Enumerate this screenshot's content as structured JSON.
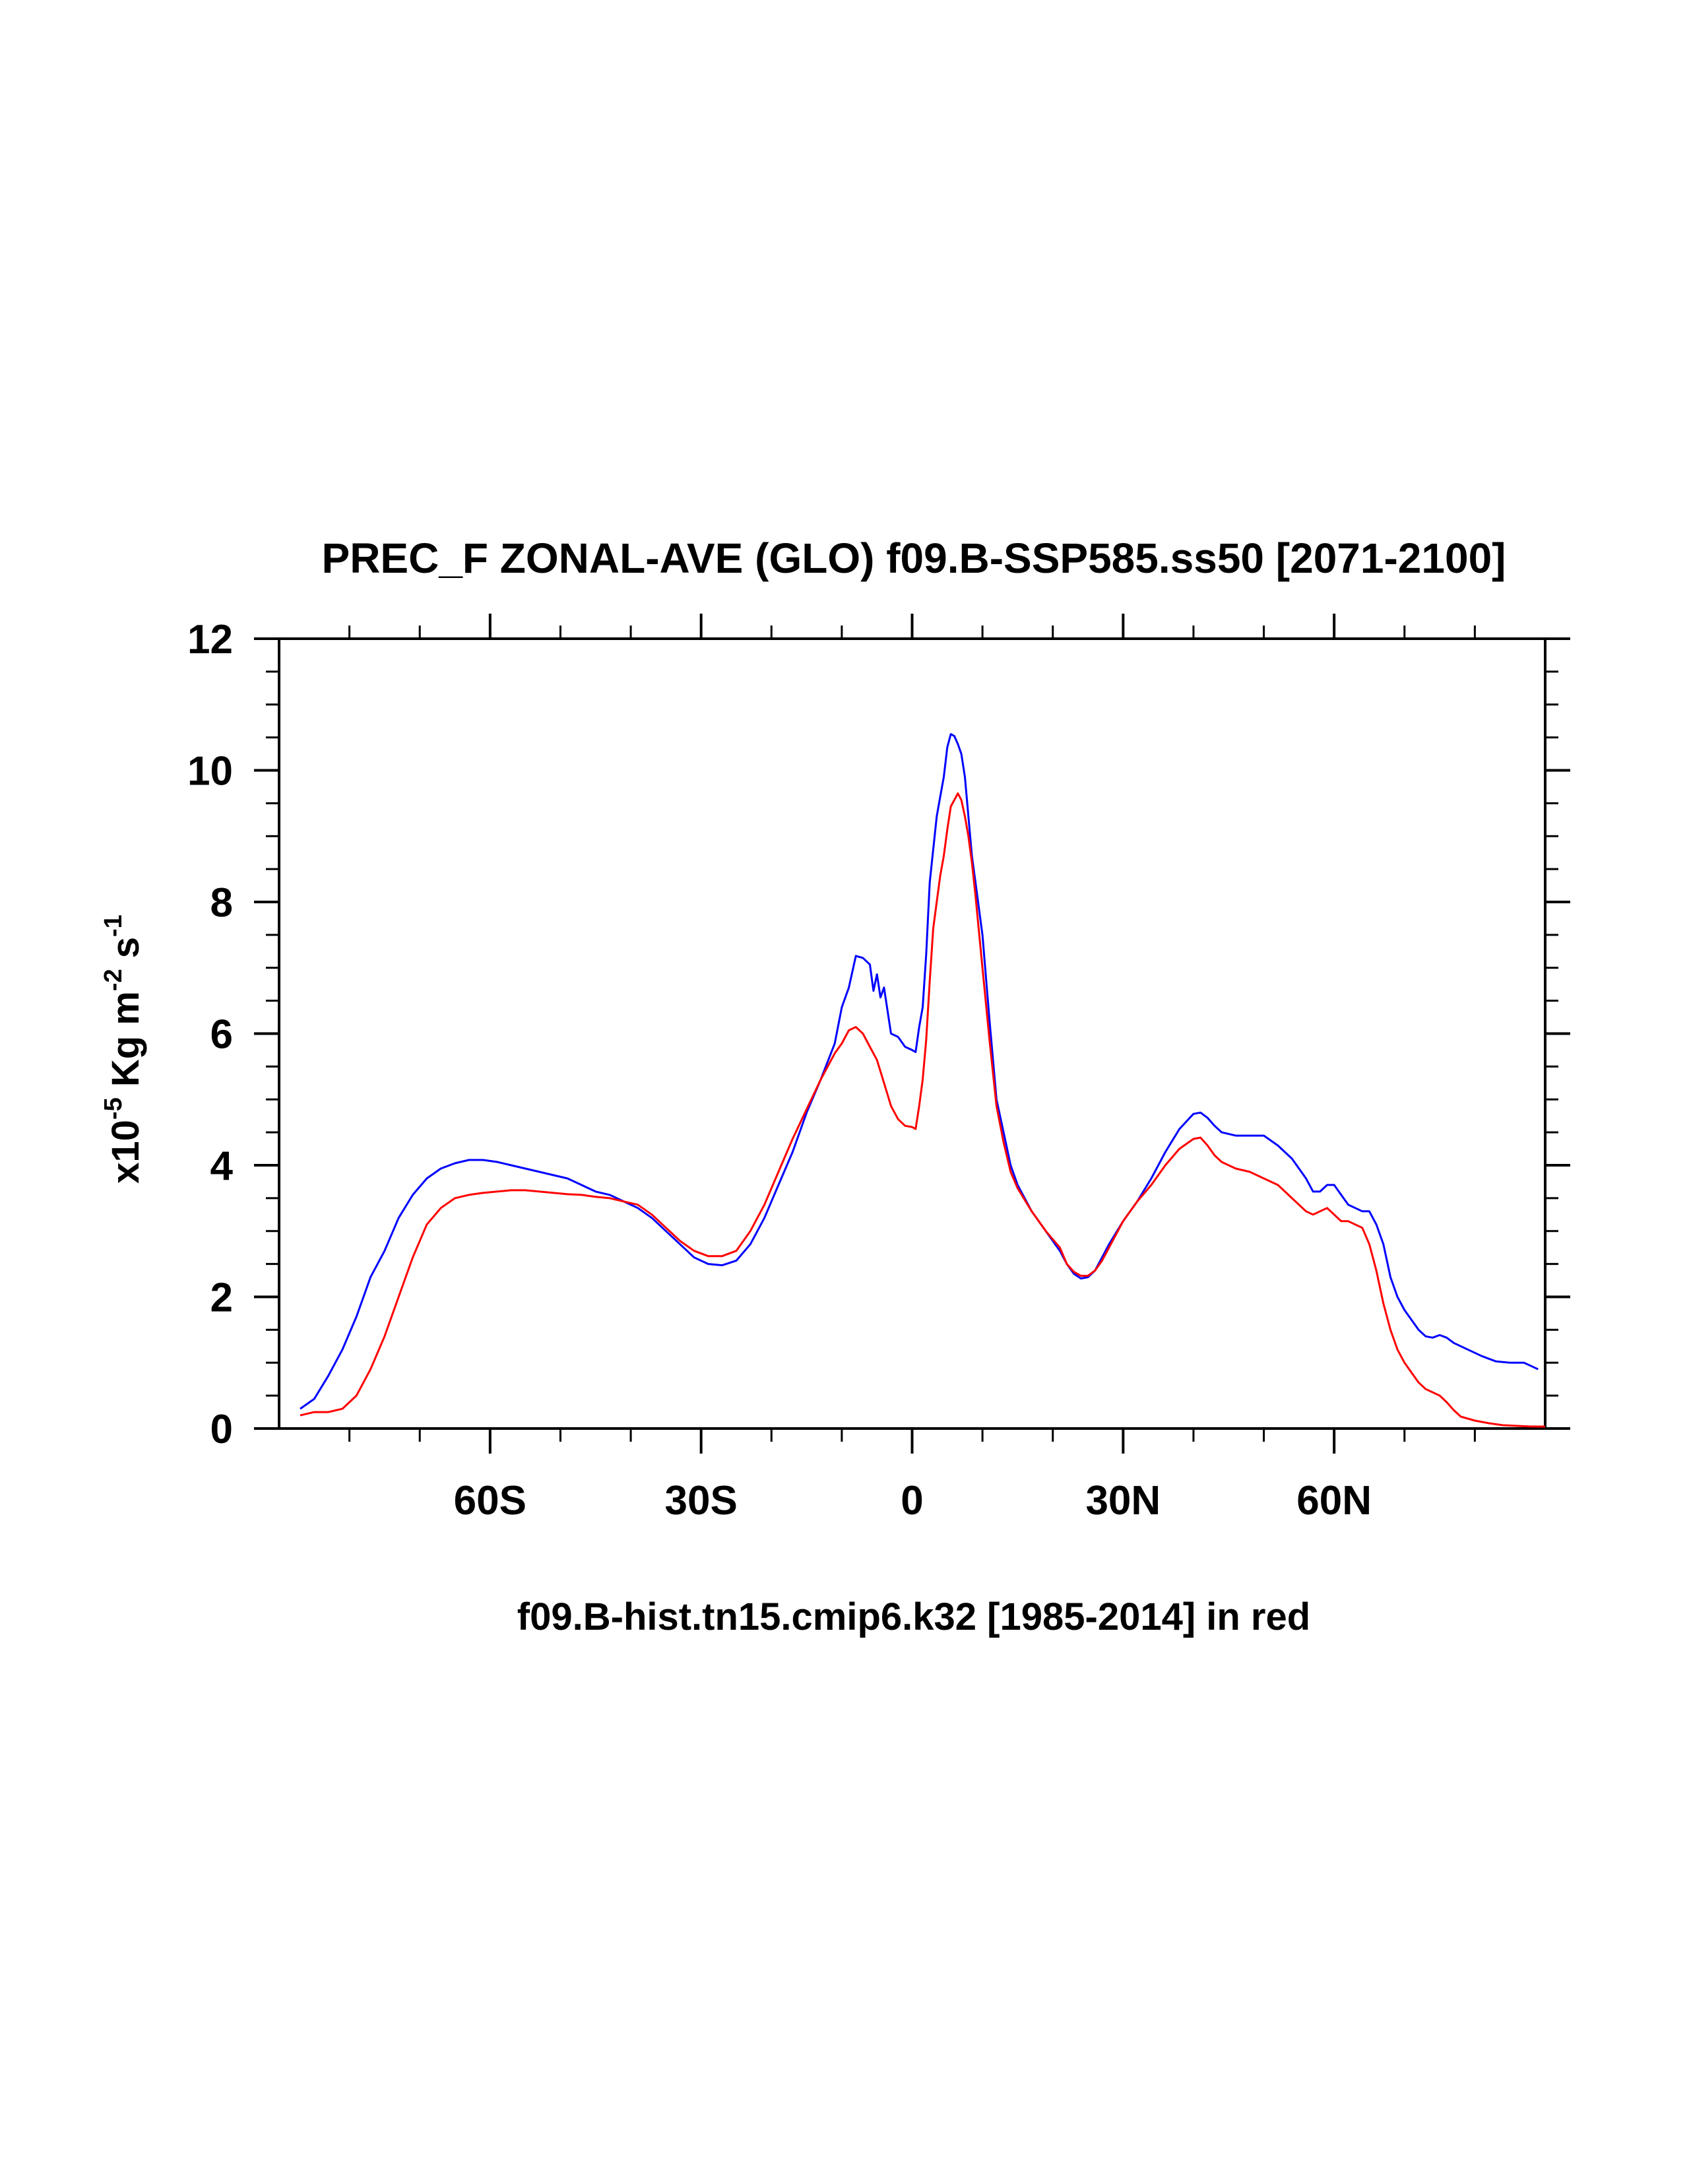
{
  "chart_data": {
    "type": "line",
    "title": "PREC_F ZONAL-AVE (GLO) f09.B-SSP585.ss50 [2071-2100]",
    "xlabel": "f09.B-hist.tn15.cmip6.k32 [1985-2014] in red",
    "ylabel": {
      "prefix": "x10",
      "exp1": "-5",
      "mid": " Kg m",
      "exp2": "-2",
      "mid2": " s",
      "exp3": "-1"
    },
    "xlim": [
      -90,
      90
    ],
    "ylim": [
      0,
      12
    ],
    "xticks": [
      {
        "value": -60,
        "label": "60S"
      },
      {
        "value": -30,
        "label": "30S"
      },
      {
        "value": 0,
        "label": "0"
      },
      {
        "value": 30,
        "label": "30N"
      },
      {
        "value": 60,
        "label": "60N"
      }
    ],
    "yticks": [
      {
        "value": 0,
        "label": "0"
      },
      {
        "value": 2,
        "label": "2"
      },
      {
        "value": 4,
        "label": "4"
      },
      {
        "value": 6,
        "label": "6"
      },
      {
        "value": 8,
        "label": "8"
      },
      {
        "value": 10,
        "label": "10"
      },
      {
        "value": 12,
        "label": "12"
      }
    ],
    "grid": false,
    "series": [
      {
        "color": "#0000ff",
        "points": [
          [
            -87,
            0.3
          ],
          [
            -85,
            0.45
          ],
          [
            -83,
            0.8
          ],
          [
            -81,
            1.2
          ],
          [
            -79,
            1.7
          ],
          [
            -77,
            2.3
          ],
          [
            -75,
            2.7
          ],
          [
            -73,
            3.2
          ],
          [
            -71,
            3.55
          ],
          [
            -69,
            3.8
          ],
          [
            -67,
            3.95
          ],
          [
            -65,
            4.03
          ],
          [
            -63,
            4.08
          ],
          [
            -61,
            4.08
          ],
          [
            -59,
            4.05
          ],
          [
            -57,
            4.0
          ],
          [
            -55,
            3.95
          ],
          [
            -53,
            3.9
          ],
          [
            -51,
            3.85
          ],
          [
            -49,
            3.8
          ],
          [
            -47,
            3.7
          ],
          [
            -45,
            3.6
          ],
          [
            -43,
            3.55
          ],
          [
            -41,
            3.45
          ],
          [
            -39,
            3.35
          ],
          [
            -37,
            3.2
          ],
          [
            -35,
            3.0
          ],
          [
            -33,
            2.8
          ],
          [
            -31,
            2.6
          ],
          [
            -29,
            2.5
          ],
          [
            -27,
            2.48
          ],
          [
            -25,
            2.55
          ],
          [
            -23,
            2.8
          ],
          [
            -21,
            3.2
          ],
          [
            -19,
            3.7
          ],
          [
            -17,
            4.2
          ],
          [
            -15,
            4.8
          ],
          [
            -13,
            5.3
          ],
          [
            -11,
            5.85
          ],
          [
            -10,
            6.4
          ],
          [
            -9,
            6.7
          ],
          [
            -8,
            7.18
          ],
          [
            -7,
            7.15
          ],
          [
            -6,
            7.05
          ],
          [
            -5.5,
            6.65
          ],
          [
            -5,
            6.9
          ],
          [
            -4.5,
            6.55
          ],
          [
            -4,
            6.7
          ],
          [
            -3,
            6.0
          ],
          [
            -2,
            5.95
          ],
          [
            -1,
            5.8
          ],
          [
            0,
            5.75
          ],
          [
            0.5,
            5.72
          ],
          [
            1,
            6.1
          ],
          [
            1.5,
            6.4
          ],
          [
            2,
            7.2
          ],
          [
            2.5,
            8.3
          ],
          [
            3,
            8.8
          ],
          [
            3.5,
            9.3
          ],
          [
            4,
            9.6
          ],
          [
            4.5,
            9.9
          ],
          [
            5,
            10.35
          ],
          [
            5.5,
            10.55
          ],
          [
            6,
            10.52
          ],
          [
            6.5,
            10.4
          ],
          [
            7,
            10.25
          ],
          [
            7.5,
            9.9
          ],
          [
            8,
            9.3
          ],
          [
            8.5,
            8.7
          ],
          [
            9,
            8.3
          ],
          [
            10,
            7.5
          ],
          [
            11,
            6.2
          ],
          [
            12,
            5.0
          ],
          [
            13,
            4.5
          ],
          [
            14,
            4.0
          ],
          [
            15,
            3.7
          ],
          [
            17,
            3.3
          ],
          [
            19,
            3.0
          ],
          [
            21,
            2.7
          ],
          [
            22,
            2.5
          ],
          [
            23,
            2.35
          ],
          [
            24,
            2.28
          ],
          [
            25,
            2.3
          ],
          [
            26,
            2.4
          ],
          [
            27,
            2.6
          ],
          [
            28,
            2.8
          ],
          [
            30,
            3.15
          ],
          [
            32,
            3.45
          ],
          [
            34,
            3.8
          ],
          [
            36,
            4.2
          ],
          [
            38,
            4.55
          ],
          [
            40,
            4.78
          ],
          [
            41,
            4.8
          ],
          [
            42,
            4.72
          ],
          [
            43,
            4.6
          ],
          [
            44,
            4.5
          ],
          [
            46,
            4.45
          ],
          [
            48,
            4.45
          ],
          [
            50,
            4.45
          ],
          [
            52,
            4.3
          ],
          [
            54,
            4.1
          ],
          [
            56,
            3.8
          ],
          [
            57,
            3.6
          ],
          [
            58,
            3.6
          ],
          [
            59,
            3.7
          ],
          [
            60,
            3.7
          ],
          [
            61,
            3.55
          ],
          [
            62,
            3.4
          ],
          [
            63,
            3.35
          ],
          [
            64,
            3.3
          ],
          [
            65,
            3.3
          ],
          [
            66,
            3.1
          ],
          [
            67,
            2.8
          ],
          [
            68,
            2.3
          ],
          [
            69,
            2.0
          ],
          [
            70,
            1.8
          ],
          [
            71,
            1.65
          ],
          [
            72,
            1.5
          ],
          [
            73,
            1.4
          ],
          [
            74,
            1.38
          ],
          [
            75,
            1.42
          ],
          [
            76,
            1.38
          ],
          [
            77,
            1.3
          ],
          [
            79,
            1.2
          ],
          [
            81,
            1.1
          ],
          [
            83,
            1.02
          ],
          [
            85,
            1.0
          ],
          [
            87,
            1.0
          ],
          [
            89,
            0.9
          ]
        ]
      },
      {
        "color": "#ff0000",
        "points": [
          [
            -87,
            0.2
          ],
          [
            -85,
            0.25
          ],
          [
            -83,
            0.25
          ],
          [
            -81,
            0.3
          ],
          [
            -79,
            0.5
          ],
          [
            -77,
            0.9
          ],
          [
            -75,
            1.4
          ],
          [
            -73,
            2.0
          ],
          [
            -71,
            2.6
          ],
          [
            -69,
            3.1
          ],
          [
            -67,
            3.35
          ],
          [
            -65,
            3.5
          ],
          [
            -63,
            3.55
          ],
          [
            -61,
            3.58
          ],
          [
            -59,
            3.6
          ],
          [
            -57,
            3.62
          ],
          [
            -55,
            3.62
          ],
          [
            -53,
            3.6
          ],
          [
            -51,
            3.58
          ],
          [
            -49,
            3.56
          ],
          [
            -47,
            3.55
          ],
          [
            -45,
            3.52
          ],
          [
            -43,
            3.5
          ],
          [
            -41,
            3.45
          ],
          [
            -39,
            3.4
          ],
          [
            -37,
            3.25
          ],
          [
            -35,
            3.05
          ],
          [
            -33,
            2.85
          ],
          [
            -31,
            2.7
          ],
          [
            -29,
            2.62
          ],
          [
            -27,
            2.62
          ],
          [
            -25,
            2.7
          ],
          [
            -23,
            3.0
          ],
          [
            -21,
            3.4
          ],
          [
            -19,
            3.9
          ],
          [
            -17,
            4.4
          ],
          [
            -15,
            4.85
          ],
          [
            -13,
            5.3
          ],
          [
            -11,
            5.7
          ],
          [
            -10,
            5.85
          ],
          [
            -9,
            6.05
          ],
          [
            -8,
            6.1
          ],
          [
            -7,
            6.0
          ],
          [
            -6.5,
            5.9
          ],
          [
            -6,
            5.8
          ],
          [
            -5,
            5.6
          ],
          [
            -4,
            5.25
          ],
          [
            -3,
            4.9
          ],
          [
            -2,
            4.7
          ],
          [
            -1,
            4.6
          ],
          [
            0,
            4.58
          ],
          [
            0.5,
            4.55
          ],
          [
            1,
            4.9
          ],
          [
            1.5,
            5.3
          ],
          [
            2,
            5.9
          ],
          [
            2.5,
            6.8
          ],
          [
            3,
            7.6
          ],
          [
            3.5,
            8.0
          ],
          [
            4,
            8.4
          ],
          [
            4.5,
            8.7
          ],
          [
            5,
            9.1
          ],
          [
            5.5,
            9.45
          ],
          [
            6,
            9.55
          ],
          [
            6.5,
            9.65
          ],
          [
            7,
            9.55
          ],
          [
            7.5,
            9.3
          ],
          [
            8,
            9.0
          ],
          [
            8.5,
            8.6
          ],
          [
            9,
            8.1
          ],
          [
            10,
            7.0
          ],
          [
            11,
            5.9
          ],
          [
            12,
            4.9
          ],
          [
            13,
            4.35
          ],
          [
            14,
            3.9
          ],
          [
            15,
            3.65
          ],
          [
            17,
            3.3
          ],
          [
            19,
            3.0
          ],
          [
            21,
            2.75
          ],
          [
            22,
            2.5
          ],
          [
            23,
            2.38
          ],
          [
            24,
            2.32
          ],
          [
            25,
            2.32
          ],
          [
            26,
            2.4
          ],
          [
            27,
            2.55
          ],
          [
            28,
            2.75
          ],
          [
            30,
            3.15
          ],
          [
            32,
            3.45
          ],
          [
            34,
            3.7
          ],
          [
            36,
            4.0
          ],
          [
            38,
            4.25
          ],
          [
            40,
            4.4
          ],
          [
            41,
            4.42
          ],
          [
            42,
            4.3
          ],
          [
            43,
            4.15
          ],
          [
            44,
            4.05
          ],
          [
            46,
            3.95
          ],
          [
            48,
            3.9
          ],
          [
            50,
            3.8
          ],
          [
            52,
            3.7
          ],
          [
            54,
            3.5
          ],
          [
            56,
            3.3
          ],
          [
            57,
            3.25
          ],
          [
            58,
            3.3
          ],
          [
            59,
            3.35
          ],
          [
            60,
            3.25
          ],
          [
            61,
            3.15
          ],
          [
            62,
            3.15
          ],
          [
            63,
            3.1
          ],
          [
            64,
            3.05
          ],
          [
            65,
            2.8
          ],
          [
            66,
            2.4
          ],
          [
            67,
            1.9
          ],
          [
            68,
            1.5
          ],
          [
            69,
            1.2
          ],
          [
            70,
            1.0
          ],
          [
            71,
            0.85
          ],
          [
            72,
            0.7
          ],
          [
            73,
            0.6
          ],
          [
            74,
            0.55
          ],
          [
            75,
            0.5
          ],
          [
            76,
            0.4
          ],
          [
            77,
            0.28
          ],
          [
            78,
            0.18
          ],
          [
            80,
            0.12
          ],
          [
            82,
            0.08
          ],
          [
            84,
            0.05
          ],
          [
            86,
            0.04
          ],
          [
            88,
            0.03
          ],
          [
            90,
            0.03
          ]
        ]
      }
    ]
  }
}
